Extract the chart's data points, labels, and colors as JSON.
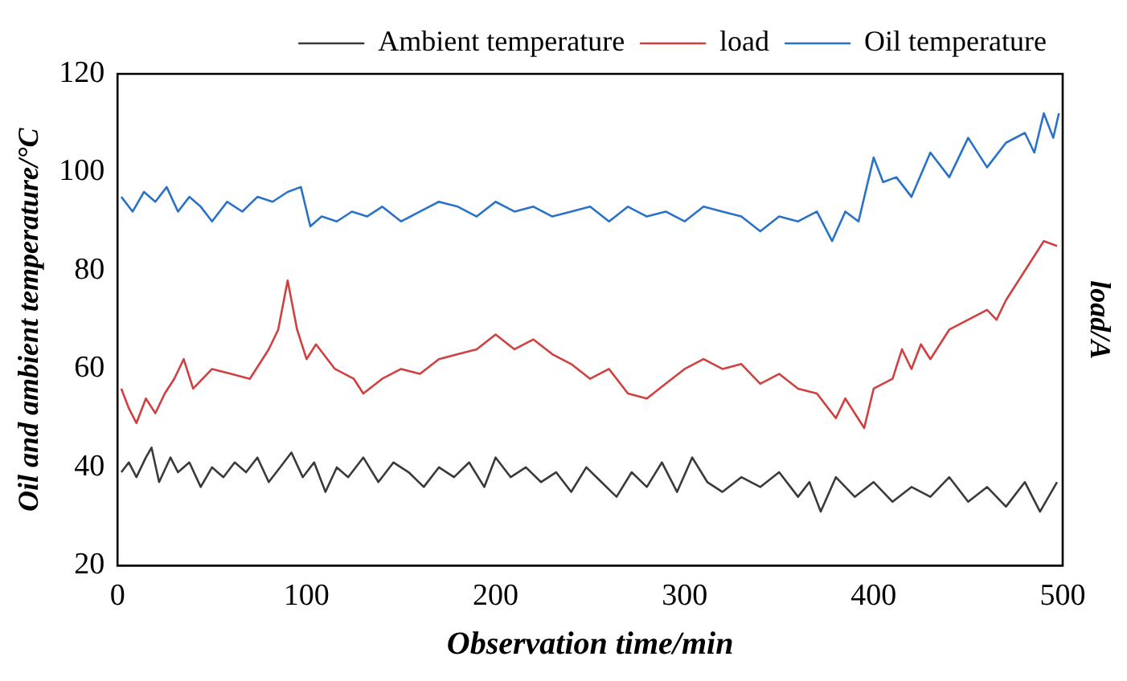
{
  "chart_data": {
    "type": "line",
    "xlabel": "Observation time/min",
    "ylabel": "Oil and ambient temperature/°C",
    "y2label": "load/A",
    "xlim": [
      0,
      500
    ],
    "xticks": [
      0,
      100,
      200,
      300,
      400,
      500
    ],
    "ylim": [
      20,
      120
    ],
    "yticks": [
      20,
      40,
      60,
      80,
      100,
      120
    ],
    "grid": false,
    "legend": "top right",
    "marker": "none",
    "line_style": "solid",
    "series": [
      {
        "name": "Ambient temperature",
        "color": "#3a3a3a",
        "x": [
          2,
          6,
          10,
          15,
          18,
          22,
          28,
          32,
          38,
          44,
          50,
          56,
          62,
          68,
          74,
          80,
          86,
          92,
          98,
          104,
          110,
          116,
          122,
          130,
          138,
          146,
          154,
          162,
          170,
          178,
          186,
          194,
          200,
          208,
          216,
          224,
          232,
          240,
          248,
          256,
          264,
          272,
          280,
          288,
          296,
          304,
          312,
          320,
          330,
          340,
          350,
          360,
          366,
          372,
          380,
          390,
          400,
          410,
          420,
          430,
          440,
          450,
          460,
          470,
          480,
          488,
          494,
          497
        ],
        "values": [
          39,
          41,
          38,
          42,
          44,
          37,
          42,
          39,
          41,
          36,
          40,
          38,
          41,
          39,
          42,
          37,
          40,
          43,
          38,
          41,
          35,
          40,
          38,
          42,
          37,
          41,
          39,
          36,
          40,
          38,
          41,
          36,
          42,
          38,
          40,
          37,
          39,
          35,
          40,
          37,
          34,
          39,
          36,
          41,
          35,
          42,
          37,
          35,
          38,
          36,
          39,
          34,
          37,
          31,
          38,
          34,
          37,
          33,
          36,
          34,
          38,
          33,
          36,
          32,
          37,
          31,
          35,
          37
        ]
      },
      {
        "name": "load",
        "color": "#d04040",
        "x": [
          2,
          6,
          10,
          15,
          20,
          25,
          30,
          35,
          40,
          45,
          50,
          60,
          70,
          80,
          85,
          90,
          95,
          100,
          105,
          115,
          125,
          130,
          140,
          150,
          160,
          170,
          180,
          190,
          200,
          210,
          220,
          230,
          240,
          250,
          260,
          270,
          280,
          290,
          300,
          310,
          320,
          330,
          340,
          350,
          360,
          370,
          380,
          385,
          395,
          400,
          410,
          415,
          420,
          425,
          430,
          440,
          450,
          460,
          465,
          470,
          480,
          490,
          497
        ],
        "values": [
          56,
          52,
          49,
          54,
          51,
          55,
          58,
          62,
          56,
          58,
          60,
          59,
          58,
          64,
          68,
          78,
          68,
          62,
          65,
          60,
          58,
          55,
          58,
          60,
          59,
          62,
          63,
          64,
          67,
          64,
          66,
          63,
          61,
          58,
          60,
          55,
          54,
          57,
          60,
          62,
          60,
          61,
          57,
          59,
          56,
          55,
          50,
          54,
          48,
          56,
          58,
          64,
          60,
          65,
          62,
          68,
          70,
          72,
          70,
          74,
          80,
          86,
          85
        ]
      },
      {
        "name": "Oil temperature",
        "color": "#2a72c8",
        "x": [
          2,
          8,
          14,
          20,
          26,
          32,
          38,
          44,
          50,
          58,
          66,
          74,
          82,
          90,
          97,
          102,
          108,
          116,
          124,
          132,
          140,
          150,
          160,
          170,
          180,
          190,
          200,
          210,
          220,
          230,
          240,
          250,
          260,
          270,
          280,
          290,
          300,
          310,
          320,
          330,
          340,
          350,
          360,
          370,
          378,
          385,
          392,
          400,
          405,
          412,
          420,
          430,
          440,
          450,
          460,
          470,
          480,
          485,
          490,
          495,
          498
        ],
        "values": [
          95,
          92,
          96,
          94,
          97,
          92,
          95,
          93,
          90,
          94,
          92,
          95,
          94,
          96,
          97,
          89,
          91,
          90,
          92,
          91,
          93,
          90,
          92,
          94,
          93,
          91,
          94,
          92,
          93,
          91,
          92,
          93,
          90,
          93,
          91,
          92,
          90,
          93,
          92,
          91,
          88,
          91,
          90,
          92,
          86,
          92,
          90,
          103,
          98,
          99,
          95,
          104,
          99,
          107,
          101,
          106,
          108,
          104,
          112,
          107,
          112
        ]
      }
    ]
  }
}
